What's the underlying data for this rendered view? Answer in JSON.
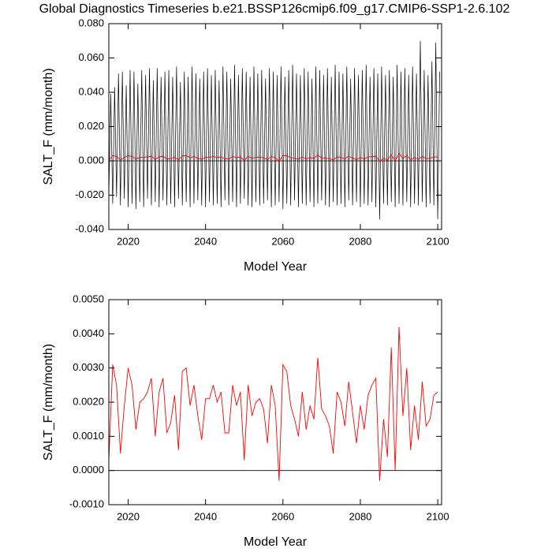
{
  "chart_data": [
    {
      "type": "line",
      "title": "Global Diagnostics Timeseries b.e21.BSSP126cmip6.f09_g17.CMIP6-SSP1-2.6.102",
      "x_label": "Model Year",
      "y_label": "SALT_F (mm/month)",
      "xlim": [
        2015,
        2101
      ],
      "xticks": [
        2020,
        2040,
        2060,
        2080,
        2100
      ],
      "ylim": [
        -0.04,
        0.08
      ],
      "yticks": [
        {
          "value": -0.04,
          "label": "-0.040"
        },
        {
          "value": -0.02,
          "label": "-0.020"
        },
        {
          "value": 0,
          "label": "0.000"
        },
        {
          "value": 0.02,
          "label": "0.020"
        },
        {
          "value": 0.04,
          "label": "0.040"
        },
        {
          "value": 0.06,
          "label": "0.060"
        },
        {
          "value": 0.08,
          "label": "0.080"
        }
      ],
      "series": [
        {
          "color": "#000000",
          "x": [
            2015,
            2015.5,
            2016,
            2016.5,
            2017,
            2017.5,
            2018,
            2018.5,
            2019,
            2019.5,
            2020,
            2020.5,
            2021,
            2021.5,
            2022,
            2022.5,
            2023,
            2023.5,
            2024,
            2024.5,
            2025,
            2025.5,
            2026,
            2026.5,
            2027,
            2027.5,
            2028,
            2028.5,
            2029,
            2029.5,
            2030,
            2030.5,
            2031,
            2031.5,
            2032,
            2032.5,
            2033,
            2033.5,
            2034,
            2034.5,
            2035,
            2035.5,
            2036,
            2036.5,
            2037,
            2037.5,
            2038,
            2038.5,
            2039,
            2039.5,
            2040,
            2040.5,
            2041,
            2041.5,
            2042,
            2042.5,
            2043,
            2043.5,
            2044,
            2044.5,
            2045,
            2045.5,
            2046,
            2046.5,
            2047,
            2047.5,
            2048,
            2048.5,
            2049,
            2049.5,
            2050,
            2050.5,
            2051,
            2051.5,
            2052,
            2052.5,
            2053,
            2053.5,
            2054,
            2054.5,
            2055,
            2055.5,
            2056,
            2056.5,
            2057,
            2057.5,
            2058,
            2058.5,
            2059,
            2059.5,
            2060,
            2060.5,
            2061,
            2061.5,
            2062,
            2062.5,
            2063,
            2063.5,
            2064,
            2064.5,
            2065,
            2065.5,
            2066,
            2066.5,
            2067,
            2067.5,
            2068,
            2068.5,
            2069,
            2069.5,
            2070,
            2070.5,
            2071,
            2071.5,
            2072,
            2072.5,
            2073,
            2073.5,
            2074,
            2074.5,
            2075,
            2075.5,
            2076,
            2076.5,
            2077,
            2077.5,
            2078,
            2078.5,
            2079,
            2079.5,
            2080,
            2080.5,
            2081,
            2081.5,
            2082,
            2082.5,
            2083,
            2083.5,
            2084,
            2084.5,
            2085,
            2085.5,
            2086,
            2086.5,
            2087,
            2087.5,
            2088,
            2088.5,
            2089,
            2089.5,
            2090,
            2090.5,
            2091,
            2091.5,
            2092,
            2092.5,
            2093,
            2093.5,
            2094,
            2094.5,
            2095,
            2095.5,
            2096,
            2096.5,
            2097,
            2097.5,
            2098,
            2098.5,
            2099,
            2099.5,
            2100,
            2100.5
          ],
          "values": [
            -0.02,
            0.039,
            -0.025,
            0.043,
            -0.021,
            0.051,
            -0.026,
            0.052,
            -0.022,
            0.044,
            -0.027,
            0.053,
            -0.025,
            0.052,
            -0.028,
            0.045,
            -0.024,
            0.053,
            -0.027,
            0.05,
            -0.022,
            0.054,
            -0.026,
            0.047,
            -0.024,
            0.054,
            -0.027,
            0.049,
            -0.023,
            0.052,
            -0.026,
            0.053,
            -0.025,
            0.049,
            -0.027,
            0.055,
            -0.022,
            0.046,
            -0.026,
            0.052,
            -0.024,
            0.049,
            -0.027,
            0.055,
            -0.025,
            0.051,
            -0.023,
            0.048,
            -0.026,
            0.052,
            -0.027,
            0.054,
            -0.024,
            0.05,
            -0.026,
            0.053,
            -0.025,
            0.047,
            -0.027,
            0.055,
            -0.023,
            0.052,
            -0.026,
            0.048,
            -0.024,
            0.056,
            -0.027,
            0.05,
            -0.025,
            0.054,
            -0.022,
            0.052,
            -0.026,
            0.049,
            -0.027,
            0.055,
            -0.024,
            0.051,
            -0.026,
            0.053,
            -0.025,
            0.048,
            -0.023,
            0.054,
            -0.027,
            0.052,
            -0.026,
            0.05,
            -0.024,
            0.055,
            -0.028,
            0.049,
            -0.025,
            0.053,
            -0.026,
            0.056,
            -0.023,
            0.051,
            -0.027,
            0.05,
            -0.025,
            0.054,
            -0.026,
            0.052,
            -0.024,
            0.048,
            -0.027,
            0.055,
            -0.025,
            0.053,
            -0.023,
            0.05,
            -0.026,
            0.054,
            -0.027,
            0.049,
            -0.024,
            0.056,
            -0.026,
            0.052,
            -0.025,
            0.051,
            -0.027,
            0.055,
            -0.023,
            0.048,
            -0.026,
            0.054,
            -0.024,
            0.05,
            -0.027,
            0.053,
            -0.025,
            0.056,
            -0.026,
            0.049,
            -0.024,
            0.054,
            -0.027,
            0.051,
            -0.034,
            0.055,
            -0.025,
            0.05,
            -0.026,
            0.053,
            -0.024,
            0.049,
            -0.027,
            0.056,
            -0.025,
            0.052,
            -0.026,
            0.054,
            -0.024,
            0.05,
            -0.027,
            0.055,
            -0.025,
            0.051,
            -0.026,
            0.07,
            -0.024,
            0.053,
            -0.027,
            0.05,
            -0.025,
            0.058,
            -0.026,
            0.069,
            -0.034,
            0.052
          ]
        },
        {
          "color": "#ff0000",
          "x": [
            2015,
            2016,
            2017,
            2018,
            2019,
            2020,
            2021,
            2022,
            2023,
            2024,
            2025,
            2026,
            2027,
            2028,
            2029,
            2030,
            2031,
            2032,
            2033,
            2034,
            2035,
            2036,
            2037,
            2038,
            2039,
            2040,
            2041,
            2042,
            2043,
            2044,
            2045,
            2046,
            2047,
            2048,
            2049,
            2050,
            2051,
            2052,
            2053,
            2054,
            2055,
            2056,
            2057,
            2058,
            2059,
            2060,
            2061,
            2062,
            2063,
            2064,
            2065,
            2066,
            2067,
            2068,
            2069,
            2070,
            2071,
            2072,
            2073,
            2074,
            2075,
            2076,
            2077,
            2078,
            2079,
            2080,
            2081,
            2082,
            2083,
            2084,
            2085,
            2086,
            2087,
            2088,
            2089,
            2090,
            2091,
            2092,
            2093,
            2094,
            2095,
            2096,
            2097,
            2098,
            2099,
            2100
          ],
          "values": [
            0.0003,
            0.0031,
            0.0025,
            0.0005,
            0.0019,
            0.003,
            0.0025,
            0.0012,
            0.002,
            0.0021,
            0.0023,
            0.0027,
            0.001,
            0.0023,
            0.0027,
            0.0011,
            0.0014,
            0.0022,
            0.0006,
            0.0029,
            0.003,
            0.0019,
            0.0025,
            0.0016,
            0.0009,
            0.0021,
            0.0021,
            0.0025,
            0.002,
            0.0023,
            0.0011,
            0.0011,
            0.0025,
            0.0019,
            0.0023,
            0.0003,
            0.0025,
            0.0016,
            0.002,
            0.0021,
            0.0018,
            0.0008,
            0.0025,
            0.0019,
            -0.0003,
            0.0031,
            0.0029,
            0.0019,
            0.0015,
            0.001,
            0.0023,
            0.0012,
            0.0019,
            0.0015,
            0.0033,
            0.0018,
            0.0016,
            0.0013,
            0.0005,
            0.0023,
            0.002,
            0.0013,
            0.0026,
            0.0017,
            0.0008,
            0.0019,
            0.0012,
            0.0022,
            0.0025,
            0.0027,
            -0.0003,
            0.0015,
            0.0004,
            0.0036,
            0,
            0.0042,
            0.0016,
            0.003,
            0.0006,
            0.0019,
            0.0009,
            0.0026,
            0.0013,
            0.0015,
            0.0022,
            0.0023
          ]
        }
      ]
    },
    {
      "type": "line",
      "x_label": "Model Year",
      "y_label": "SALT_F (mm/month)",
      "xlim": [
        2015,
        2101
      ],
      "xticks": [
        2020,
        2040,
        2060,
        2080,
        2100
      ],
      "ylim": [
        -0.001,
        0.005
      ],
      "yticks": [
        {
          "value": -0.001,
          "label": "-0.0010"
        },
        {
          "value": 0,
          "label": "0.0000"
        },
        {
          "value": 0.001,
          "label": "0.0010"
        },
        {
          "value": 0.002,
          "label": "0.0020"
        },
        {
          "value": 0.003,
          "label": "0.0030"
        },
        {
          "value": 0.004,
          "label": "0.0040"
        },
        {
          "value": 0.005,
          "label": "0.0050"
        }
      ],
      "series": [
        {
          "color": "#ff0000",
          "x": [
            2015,
            2016,
            2017,
            2018,
            2019,
            2020,
            2021,
            2022,
            2023,
            2024,
            2025,
            2026,
            2027,
            2028,
            2029,
            2030,
            2031,
            2032,
            2033,
            2034,
            2035,
            2036,
            2037,
            2038,
            2039,
            2040,
            2041,
            2042,
            2043,
            2044,
            2045,
            2046,
            2047,
            2048,
            2049,
            2050,
            2051,
            2052,
            2053,
            2054,
            2055,
            2056,
            2057,
            2058,
            2059,
            2060,
            2061,
            2062,
            2063,
            2064,
            2065,
            2066,
            2067,
            2068,
            2069,
            2070,
            2071,
            2072,
            2073,
            2074,
            2075,
            2076,
            2077,
            2078,
            2079,
            2080,
            2081,
            2082,
            2083,
            2084,
            2085,
            2086,
            2087,
            2088,
            2089,
            2090,
            2091,
            2092,
            2093,
            2094,
            2095,
            2096,
            2097,
            2098,
            2099,
            2100
          ],
          "values": [
            0.0003,
            0.0031,
            0.0025,
            0.0005,
            0.0019,
            0.003,
            0.0025,
            0.0012,
            0.002,
            0.0021,
            0.0023,
            0.0027,
            0.001,
            0.0023,
            0.0027,
            0.0011,
            0.0014,
            0.0022,
            0.0006,
            0.0029,
            0.003,
            0.0019,
            0.0025,
            0.0016,
            0.0009,
            0.0021,
            0.0021,
            0.0025,
            0.002,
            0.0023,
            0.0011,
            0.0011,
            0.0025,
            0.0019,
            0.0023,
            0.0003,
            0.0025,
            0.0016,
            0.002,
            0.0021,
            0.0018,
            0.0008,
            0.0025,
            0.0019,
            -0.0003,
            0.0031,
            0.0029,
            0.0019,
            0.0015,
            0.001,
            0.0023,
            0.0012,
            0.0019,
            0.0015,
            0.0033,
            0.0018,
            0.0016,
            0.0013,
            0.0005,
            0.0023,
            0.002,
            0.0013,
            0.0026,
            0.0017,
            0.0008,
            0.0019,
            0.0012,
            0.0022,
            0.0025,
            0.0027,
            -0.0003,
            0.0015,
            0.0004,
            0.0036,
            0,
            0.0042,
            0.0016,
            0.003,
            0.0006,
            0.0019,
            0.0009,
            0.0026,
            0.0013,
            0.0015,
            0.0022,
            0.0023
          ]
        }
      ]
    }
  ]
}
